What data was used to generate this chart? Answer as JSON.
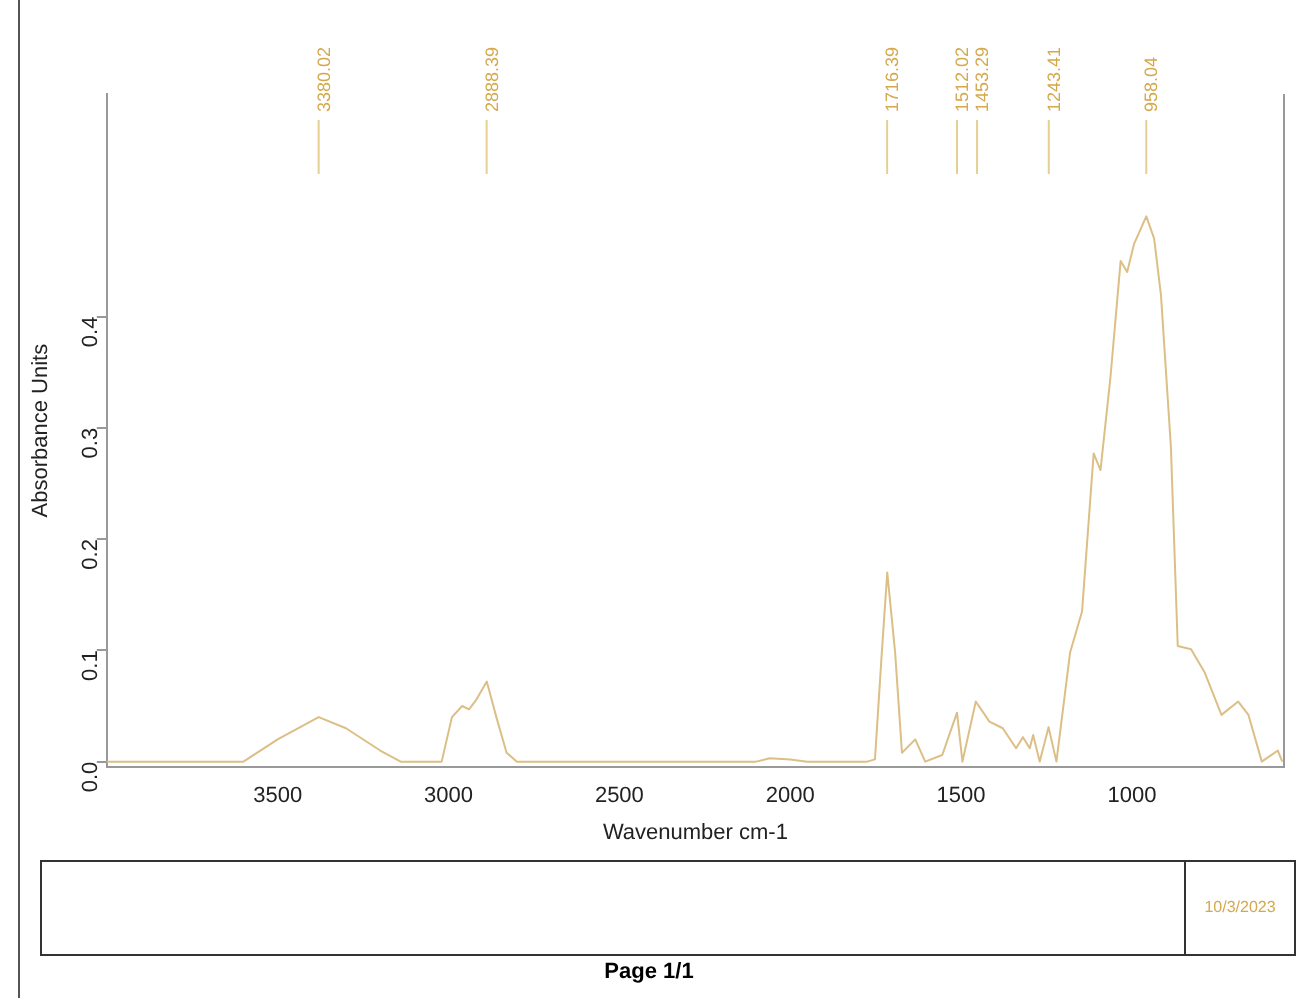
{
  "chart_data": {
    "type": "line",
    "xlabel": "Wavenumber cm-1",
    "ylabel": "Absorbance Units",
    "xlim": [
      4000,
      555
    ],
    "xticks": [
      3500,
      3000,
      2500,
      2000,
      1500,
      1000
    ],
    "ylim": [
      -0.005,
      0.6
    ],
    "yticks": [
      {
        "value": 0,
        "label": "0.0"
      },
      0.1,
      0.2,
      0.3,
      0.4
    ],
    "grid": false,
    "legend": false,
    "marker": "none",
    "line_style": "solid",
    "series": [
      {
        "color": "#dcbf86",
        "x": [
          4000,
          3600,
          3500,
          3380,
          3300,
          3200,
          3140,
          3020,
          2990,
          2960,
          2940,
          2920,
          2888,
          2860,
          2830,
          2800,
          2100,
          2060,
          2000,
          1950,
          1775,
          1752,
          1732,
          1716,
          1693,
          1673,
          1634,
          1605,
          1555,
          1512,
          1496,
          1457,
          1417,
          1378,
          1339,
          1319,
          1299,
          1289,
          1270,
          1244,
          1221,
          1181,
          1146,
          1112,
          1092,
          1063,
          1033,
          1014,
          994,
          958,
          935,
          915,
          886,
          866,
          827,
          787,
          738,
          689,
          659,
          620,
          573,
          560
        ],
        "values": [
          0,
          0,
          0.02,
          0.04,
          0.03,
          0.01,
          0,
          0,
          0.04,
          0.05,
          0.047,
          0.055,
          0.072,
          0.04,
          0.008,
          0,
          0,
          0.003,
          0.002,
          0,
          0,
          0.002,
          0.098,
          0.17,
          0.098,
          0.008,
          0.02,
          0,
          0.006,
          0.044,
          0,
          0.054,
          0.036,
          0.03,
          0.012,
          0.022,
          0.012,
          0.024,
          0,
          0.031,
          0,
          0.098,
          0.135,
          0.277,
          0.262,
          0.345,
          0.45,
          0.44,
          0.465,
          0.49,
          0.47,
          0.419,
          0.283,
          0.104,
          0.101,
          0.08,
          0.042,
          0.054,
          0.042,
          0,
          0.01,
          0
        ]
      }
    ],
    "ref_lines": [
      {
        "axis": "x",
        "value": 3380.02,
        "label": "3380.02",
        "color": "#e6cf93"
      },
      {
        "axis": "x",
        "value": 2888.39,
        "label": "2888.39",
        "color": "#e6cf93"
      },
      {
        "axis": "x",
        "value": 1716.39,
        "label": "1716.39",
        "color": "#e6cf93"
      },
      {
        "axis": "x",
        "value": 1512.02,
        "label": "1512.02",
        "color": "#e6cf93"
      },
      {
        "axis": "x",
        "value": 1453.29,
        "label": "1453.29",
        "color": "#e6cf93"
      },
      {
        "axis": "x",
        "value": 1243.41,
        "label": "1243.41",
        "color": "#e6cf93"
      },
      {
        "axis": "x",
        "value": 958.04,
        "label": "958.04",
        "color": "#e6cf93"
      }
    ],
    "annotations": [
      "10/3/2023",
      "Page 1/1"
    ]
  }
}
